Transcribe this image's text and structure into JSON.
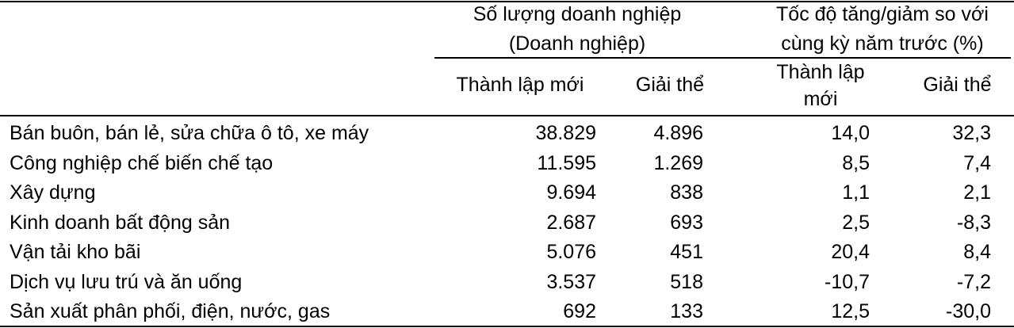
{
  "header": {
    "groups": [
      {
        "lines": [
          "Số lượng doanh nghiệp",
          "(Doanh nghiệp)"
        ]
      },
      {
        "lines": [
          "Tốc độ tăng/giảm so với",
          "cùng kỳ năm trước (%)"
        ]
      }
    ],
    "columns": [
      {
        "lines": [
          "Thành lập mới"
        ]
      },
      {
        "lines": [
          "Giải thể"
        ]
      },
      {
        "lines": [
          "Thành lập",
          "mới"
        ]
      },
      {
        "lines": [
          "Giải thể"
        ]
      }
    ]
  },
  "table": {
    "rows": [
      [
        "Bán buôn, bán lẻ, sửa chữa ô tô, xe máy",
        "38.829",
        "4.896",
        "14,0",
        "32,3"
      ],
      [
        "Công nghiệp chế biến chế tạo",
        "11.595",
        "1.269",
        "8,5",
        "7,4"
      ],
      [
        "Xây dựng",
        "9.694",
        "838",
        "1,1",
        "2,1"
      ],
      [
        "Kinh doanh bất động sản",
        "2.687",
        "693",
        "2,5",
        "-8,3"
      ],
      [
        "Vận tải kho bãi",
        "5.076",
        "451",
        "20,4",
        "8,4"
      ],
      [
        "Dịch vụ lưu trú và ăn uống",
        "3.537",
        "518",
        "-10,7",
        "-7,2"
      ],
      [
        "Sản xuất phân phối, điện, nước, gas",
        "692",
        "133",
        "12,5",
        "-30,0"
      ]
    ]
  }
}
